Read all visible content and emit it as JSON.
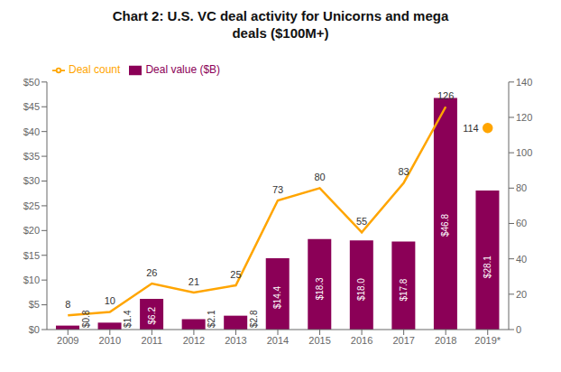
{
  "chart_data": {
    "type": "bar",
    "title": "Chart 2: U.S. VC deal activity for Unicorns and mega\ndeals ($100M+)",
    "categories": [
      "2009",
      "2010",
      "2011",
      "2012",
      "2013",
      "2014",
      "2015",
      "2016",
      "2017",
      "2018",
      "2019*"
    ],
    "series": [
      {
        "name": "Deal value ($B)",
        "type": "bar",
        "color": "#8B0057",
        "values": [
          0.8,
          1.4,
          6.2,
          2.1,
          2.8,
          14.4,
          18.3,
          18.0,
          17.8,
          46.8,
          28.1
        ],
        "value_labels": [
          "$0.8",
          "$1.4",
          "$6.2",
          "$2.1",
          "$2.8",
          "$14.4",
          "$18.3",
          "$18.0",
          "$17.8",
          "$46.8",
          "$28.1"
        ],
        "data_labels": true
      },
      {
        "name": "Deal count",
        "type": "line",
        "axis": "y2",
        "color": "#FFA500",
        "values": [
          8,
          10,
          26,
          21,
          25,
          73,
          80,
          55,
          83,
          126,
          114
        ],
        "data_labels": true
      }
    ],
    "ylim": [
      0,
      50
    ],
    "yticks": [
      {
        "value": 0,
        "label": "$0"
      },
      {
        "value": 5,
        "label": "$5"
      },
      {
        "value": 10,
        "label": "$10"
      },
      {
        "value": 15,
        "label": "$15"
      },
      {
        "value": 20,
        "label": "$20"
      },
      {
        "value": 25,
        "label": "$25"
      },
      {
        "value": 30,
        "label": "$30"
      },
      {
        "value": 35,
        "label": "$35"
      },
      {
        "value": 40,
        "label": "$40"
      },
      {
        "value": 45,
        "label": "$45"
      },
      {
        "value": 50,
        "label": "$50"
      }
    ],
    "y2lim": [
      0,
      140
    ],
    "y2ticks": [
      0,
      20,
      40,
      60,
      80,
      100,
      120,
      140
    ],
    "legend": "upper left",
    "grid": false
  }
}
